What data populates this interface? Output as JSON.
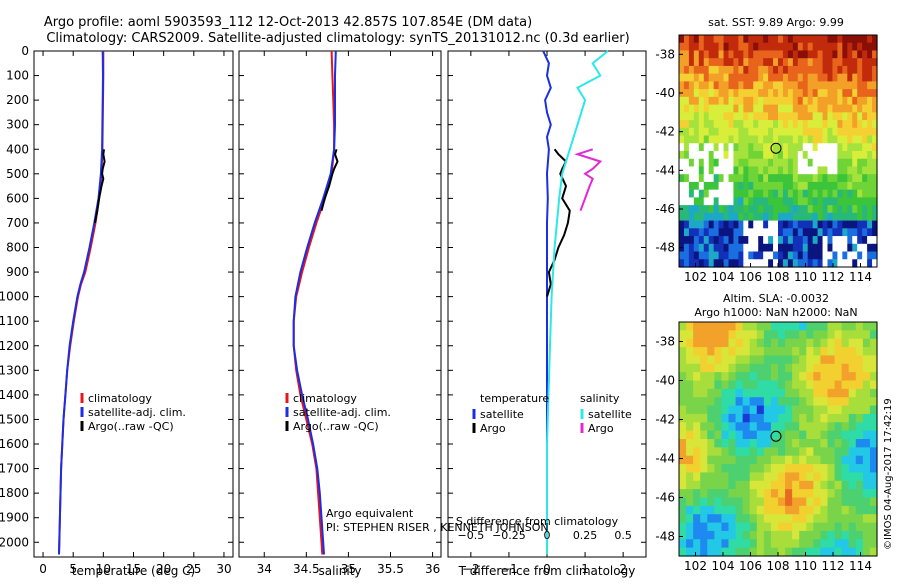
{
  "header": {
    "line1": "Argo profile: aoml 5903593_112 12-Oct-2013 42.857S 107.854E (DM data)",
    "line2": "Climatology: CARS2009. Satellite-adjusted climatology: synTS_20131012.nc (0.3d earlier)"
  },
  "footer": {
    "argo_equivalent": "Argo equivalent",
    "pi": "PI: STEPHEN RISER , KENNETH JOHNSON",
    "imos": "©IMOS 04-Aug-2017 17:42:19"
  },
  "colors": {
    "climatology": "#e8141a",
    "satellite": "#1a2ee6",
    "argo": "#000000",
    "sal_satellite": "#2ee8e8",
    "sal_argo": "#e028d8"
  },
  "chart_data": [
    {
      "type": "line",
      "id": "temperature",
      "xlabel": "temperature (deg C)",
      "ylabel": "",
      "xlim": [
        -1.5,
        31.5
      ],
      "ylim": [
        2060,
        0
      ],
      "xticks": [
        0,
        5,
        10,
        15,
        20,
        25,
        30
      ],
      "xtick_labels": [
        "0",
        "5",
        "10",
        "15",
        "20",
        "25",
        "30"
      ],
      "yticks": [
        0,
        100,
        200,
        300,
        400,
        500,
        600,
        700,
        800,
        900,
        1000,
        1100,
        1200,
        1300,
        1400,
        1500,
        1600,
        1700,
        1800,
        1900,
        2000
      ],
      "ytick_labels": [
        "0",
        "100",
        "200",
        "300",
        "400",
        "500",
        "600",
        "700",
        "800",
        "900",
        "1000",
        "1100",
        "1200",
        "1300",
        "1400",
        "1500",
        "1600",
        "1700",
        "1800",
        "1900",
        "2000"
      ],
      "legend": [
        "climatology",
        "satellite-adj. clim.",
        "Argo(..raw -QC)"
      ],
      "series": [
        {
          "name": "climatology",
          "depth": [
            0,
            100,
            200,
            300,
            400,
            500,
            600,
            700,
            800,
            900,
            950,
            1000,
            1100,
            1200,
            1300,
            1400,
            1500,
            1600,
            1700,
            1800,
            1900,
            2000,
            2050
          ],
          "values": [
            10.0,
            10.0,
            9.95,
            9.9,
            9.85,
            9.7,
            9.3,
            8.7,
            7.9,
            7.0,
            6.3,
            5.8,
            5.1,
            4.5,
            4.0,
            3.7,
            3.4,
            3.2,
            3.0,
            2.9,
            2.8,
            2.7,
            2.65
          ]
        },
        {
          "name": "satellite",
          "depth": [
            0,
            100,
            200,
            300,
            400,
            500,
            600,
            700,
            800,
            900,
            950,
            1000,
            1100,
            1200,
            1300,
            1400,
            1500,
            1600,
            1700,
            1800,
            1900,
            2000,
            2050
          ],
          "values": [
            9.9,
            9.95,
            9.9,
            9.85,
            9.8,
            9.6,
            9.2,
            8.5,
            7.7,
            6.8,
            6.2,
            5.7,
            5.0,
            4.4,
            4.0,
            3.7,
            3.4,
            3.2,
            3.0,
            2.9,
            2.8,
            2.7,
            2.65
          ]
        },
        {
          "name": "argo",
          "depth": [
            400,
            420,
            450,
            480,
            500,
            520,
            550,
            600,
            650,
            700
          ],
          "values": [
            10.1,
            10.0,
            10.2,
            9.9,
            9.8,
            10.0,
            9.7,
            9.3,
            9.0,
            8.6
          ]
        }
      ]
    },
    {
      "type": "line",
      "id": "salinity",
      "xlabel": "salinity",
      "ylabel": "",
      "xlim": [
        33.7,
        36.1
      ],
      "ylim": [
        2060,
        0
      ],
      "xticks": [
        34,
        34.5,
        35,
        35.5,
        36
      ],
      "xtick_labels": [
        "34",
        "34.5",
        "35",
        "35.5",
        "36"
      ],
      "legend": [
        "climatology",
        "satellite-adj. clim.",
        "Argo(..raw -QC)"
      ],
      "series": [
        {
          "name": "climatology",
          "depth": [
            0,
            100,
            200,
            300,
            400,
            500,
            600,
            700,
            800,
            900,
            1000,
            1100,
            1200,
            1300,
            1400,
            1500,
            1600,
            1700,
            1800,
            1900,
            2000,
            2050
          ],
          "values": [
            34.8,
            34.81,
            34.82,
            34.83,
            34.83,
            34.8,
            34.72,
            34.62,
            34.53,
            34.45,
            34.38,
            34.35,
            34.35,
            34.38,
            34.43,
            34.5,
            34.57,
            34.62,
            34.64,
            34.66,
            34.68,
            34.69
          ]
        },
        {
          "name": "satellite",
          "depth": [
            0,
            100,
            200,
            300,
            400,
            500,
            600,
            700,
            800,
            900,
            1000,
            1100,
            1200,
            1300,
            1400,
            1500,
            1600,
            1700,
            1800,
            1900,
            2000,
            2050
          ],
          "values": [
            34.85,
            34.84,
            34.84,
            34.84,
            34.83,
            34.79,
            34.7,
            34.6,
            34.51,
            34.43,
            34.37,
            34.35,
            34.35,
            34.39,
            34.45,
            34.52,
            34.58,
            34.63,
            34.66,
            34.68,
            34.7,
            34.71
          ]
        },
        {
          "name": "argo",
          "depth": [
            400,
            420,
            450,
            480,
            500,
            550,
            600,
            650
          ],
          "values": [
            34.86,
            34.84,
            34.87,
            34.83,
            34.81,
            34.77,
            34.72,
            34.68
          ]
        }
      ]
    },
    {
      "type": "line",
      "id": "difference",
      "xlabel": "T difference from climatology",
      "xlabel2": "S difference from climatology",
      "xlim": [
        -2.6,
        2.6
      ],
      "ylim": [
        2060,
        0
      ],
      "xticks": [
        -2,
        -1,
        0,
        1,
        2
      ],
      "xtick_labels": [
        "−2",
        "−1",
        "0",
        "1",
        "2"
      ],
      "sticks": [
        -0.5,
        -0.25,
        0,
        0.25,
        0.5
      ],
      "stick_labels": [
        "−0.5",
        "−0.25",
        "0",
        "0.25",
        "0.5"
      ],
      "legend_temperature": {
        "title": "temperature",
        "items": [
          "satellite",
          "Argo"
        ]
      },
      "legend_salinity": {
        "title": "salinity",
        "items": [
          "satellite",
          "Argo"
        ]
      },
      "series": [
        {
          "name": "T satellite",
          "depth": [
            0,
            50,
            100,
            150,
            200,
            250,
            300,
            350,
            400,
            500,
            600,
            700,
            800,
            900,
            1000,
            1200,
            1400,
            1600,
            1800,
            2000,
            2050
          ],
          "values": [
            -0.1,
            0.05,
            0.0,
            0.1,
            -0.05,
            0.0,
            0.1,
            0.0,
            0.05,
            0.0,
            0.02,
            0.0,
            0.0,
            0.0,
            0.0,
            0.0,
            0.0,
            0.0,
            0.0,
            0.0,
            0.0
          ]
        },
        {
          "name": "T argo",
          "depth": [
            400,
            420,
            450,
            480,
            500,
            550,
            600,
            650,
            700,
            750,
            800,
            850,
            900,
            950,
            1000
          ],
          "values": [
            0.2,
            0.3,
            0.5,
            0.4,
            0.35,
            0.5,
            0.4,
            0.6,
            0.55,
            0.45,
            0.3,
            0.2,
            0.05,
            0.1,
            0.0
          ]
        },
        {
          "name": "S satellite",
          "depth": [
            0,
            50,
            100,
            150,
            200,
            300,
            400,
            500,
            600,
            800,
            1000,
            1200,
            1400,
            1600,
            1800,
            2000,
            2050
          ],
          "values": [
            0.4,
            0.3,
            0.35,
            0.2,
            0.25,
            0.2,
            0.15,
            0.1,
            0.08,
            0.05,
            0.03,
            0.02,
            0.01,
            0.0,
            0.0,
            0.0,
            0.0
          ]
        },
        {
          "name": "S argo",
          "depth": [
            400,
            420,
            450,
            480,
            500,
            520,
            550,
            600,
            650
          ],
          "values": [
            0.3,
            0.2,
            0.35,
            0.3,
            0.25,
            0.3,
            0.28,
            0.25,
            0.22
          ]
        }
      ]
    },
    {
      "type": "heatmap",
      "id": "sst",
      "title": "sat. SST: 9.89 Argo: 9.99",
      "xlim": [
        100.8,
        115.2
      ],
      "ylim": [
        -49.0,
        -37.0
      ],
      "xticks": [
        102,
        104,
        106,
        108,
        110,
        112,
        114
      ],
      "xtick_labels": [
        "102",
        "104",
        "106",
        "108",
        "110",
        "112",
        "114"
      ],
      "yticks": [
        -38,
        -40,
        -42,
        -44,
        -46,
        -48
      ],
      "ytick_labels": [
        "-38",
        "-40",
        "-42",
        "-44",
        "-46",
        "-48"
      ],
      "marker": [
        107.854,
        -42.857
      ]
    },
    {
      "type": "heatmap",
      "id": "sla",
      "title": "Altim. SLA: -0.0032",
      "subtitle": "Argo h1000: NaN h2000: NaN",
      "xlim": [
        100.8,
        115.2
      ],
      "ylim": [
        -49.0,
        -37.0
      ],
      "xticks": [
        102,
        104,
        106,
        108,
        110,
        112,
        114
      ],
      "xtick_labels": [
        "102",
        "104",
        "106",
        "108",
        "110",
        "112",
        "114"
      ],
      "yticks": [
        -38,
        -40,
        -42,
        -44,
        -46,
        -48
      ],
      "ytick_labels": [
        "-38",
        "-40",
        "-42",
        "-44",
        "-46",
        "-48"
      ],
      "marker": [
        107.854,
        -42.857
      ]
    }
  ]
}
